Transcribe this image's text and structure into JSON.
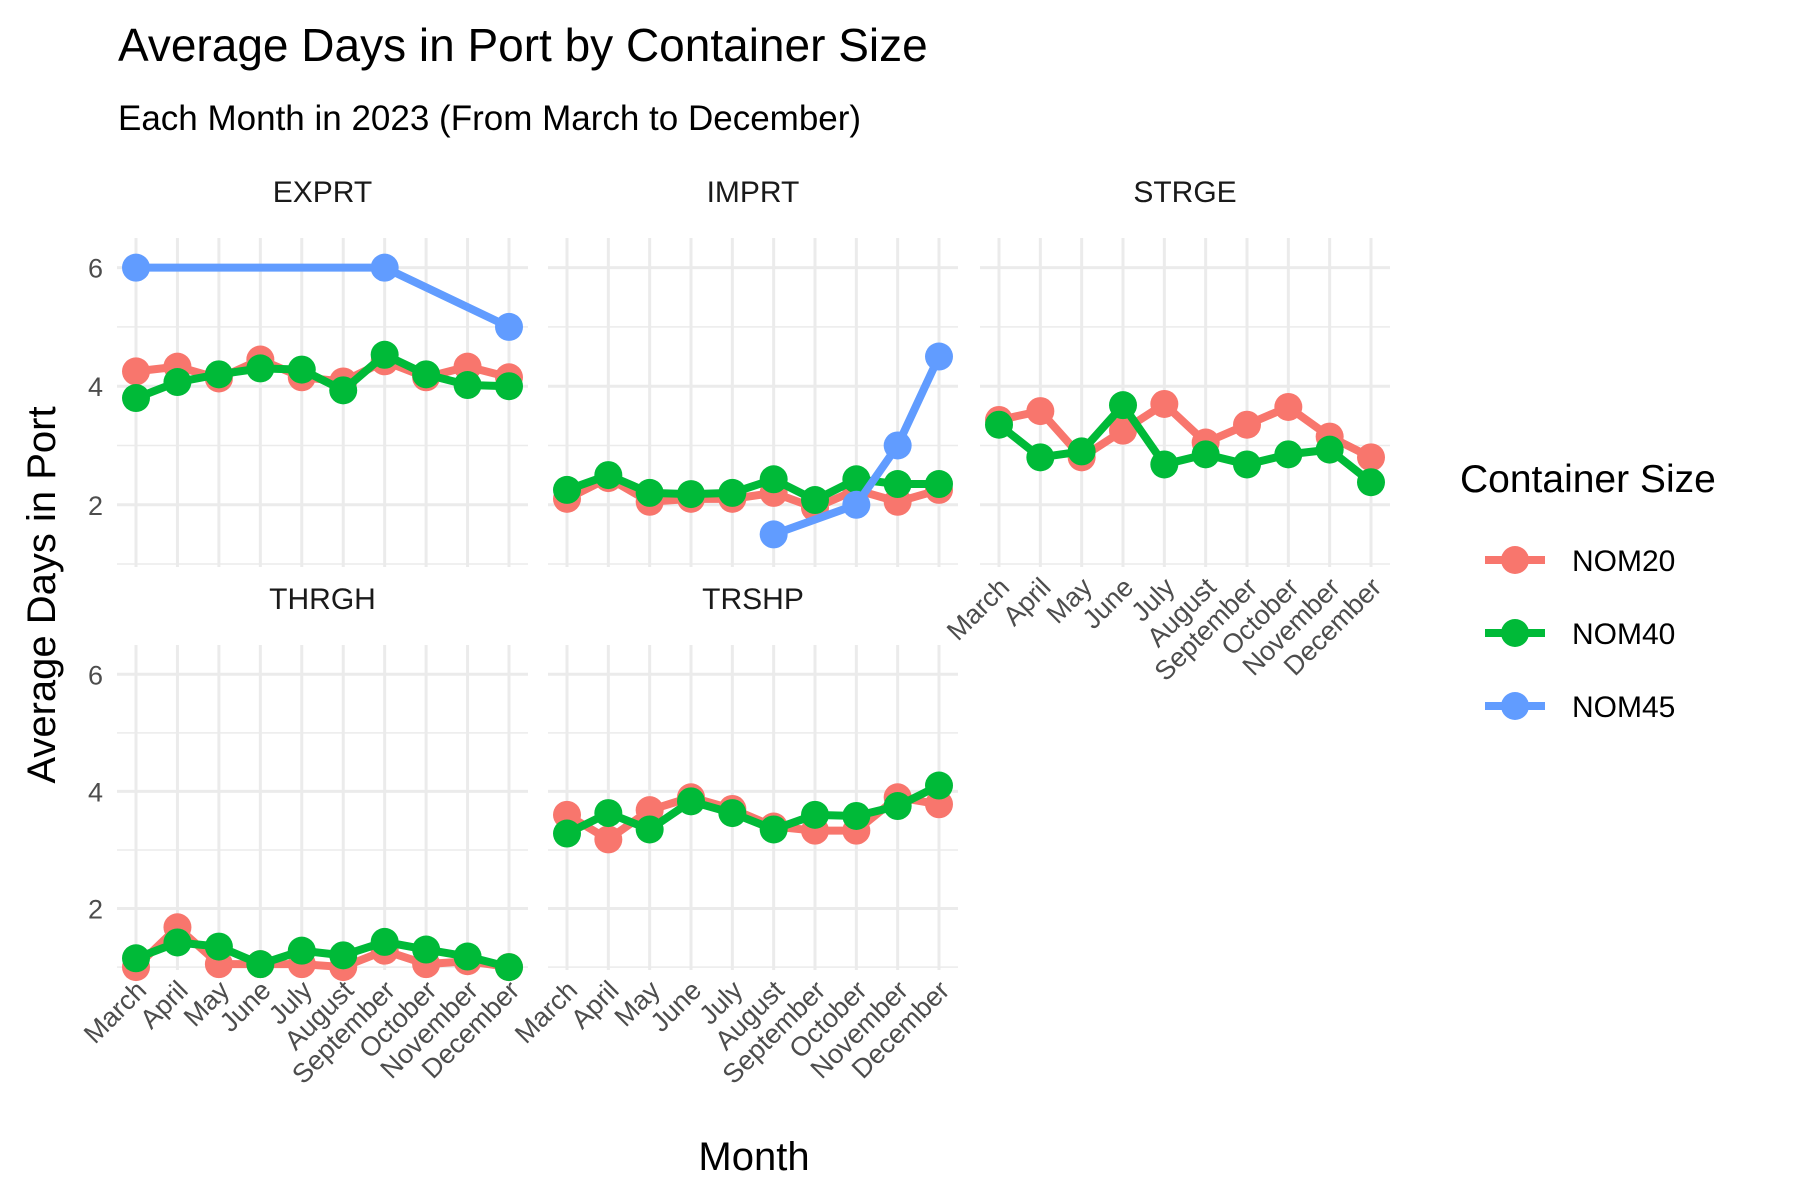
{
  "chart_data": {
    "type": "line",
    "title": "Average Days in Port by Container Size",
    "subtitle": "Each Month in 2023 (From March to December)",
    "xlabel": "Month",
    "ylabel": "Average Days in Port",
    "categories": [
      "March",
      "April",
      "May",
      "June",
      "July",
      "August",
      "September",
      "October",
      "November",
      "December"
    ],
    "yticks": [
      2,
      4,
      6
    ],
    "ylim": [
      0.95,
      6.5
    ],
    "grid": true,
    "legend": {
      "title": "Container Size",
      "placement": "right",
      "entries": [
        {
          "name": "NOM20",
          "color": "#F8766D"
        },
        {
          "name": "NOM40",
          "color": "#00BA38"
        },
        {
          "name": "NOM45",
          "color": "#619CFF"
        }
      ]
    },
    "panels": [
      {
        "name": "EXPRT",
        "series": [
          {
            "name": "NOM20",
            "values": [
              4.25,
              4.33,
              4.13,
              4.45,
              4.15,
              4.08,
              4.42,
              4.15,
              4.33,
              4.15
            ]
          },
          {
            "name": "NOM40",
            "values": [
              3.8,
              4.07,
              4.2,
              4.3,
              4.28,
              3.93,
              4.53,
              4.2,
              4.02,
              4.0
            ]
          },
          {
            "name": "NOM45",
            "values": [
              6.0,
              null,
              null,
              null,
              null,
              null,
              6.0,
              null,
              null,
              5.0
            ]
          }
        ]
      },
      {
        "name": "IMPRT",
        "series": [
          {
            "name": "NOM20",
            "values": [
              2.1,
              2.45,
              2.05,
              2.1,
              2.1,
              2.2,
              1.95,
              2.25,
              2.05,
              2.25
            ]
          },
          {
            "name": "NOM40",
            "values": [
              2.25,
              2.5,
              2.2,
              2.18,
              2.2,
              2.43,
              2.08,
              2.43,
              2.35,
              2.35
            ]
          },
          {
            "name": "NOM45",
            "values": [
              null,
              null,
              null,
              null,
              null,
              1.5,
              null,
              2.0,
              3.0,
              4.5
            ]
          }
        ]
      },
      {
        "name": "STRGE",
        "series": [
          {
            "name": "NOM20",
            "values": [
              3.43,
              3.58,
              2.8,
              3.25,
              3.7,
              3.05,
              3.35,
              3.65,
              3.15,
              2.8
            ]
          },
          {
            "name": "NOM40",
            "values": [
              3.35,
              2.8,
              2.9,
              3.68,
              2.68,
              2.85,
              2.68,
              2.85,
              2.93,
              2.38
            ]
          },
          {
            "name": "NOM45",
            "values": [
              null,
              null,
              null,
              null,
              null,
              null,
              null,
              null,
              null,
              null
            ]
          }
        ]
      },
      {
        "name": "THRGH",
        "series": [
          {
            "name": "NOM20",
            "values": [
              1.0,
              1.68,
              1.05,
              1.05,
              1.05,
              1.0,
              1.28,
              1.05,
              1.1,
              1.0
            ]
          },
          {
            "name": "NOM40",
            "values": [
              1.15,
              1.42,
              1.35,
              1.05,
              1.28,
              1.2,
              1.43,
              1.3,
              1.18,
              1.0
            ]
          },
          {
            "name": "NOM45",
            "values": [
              null,
              null,
              null,
              null,
              null,
              null,
              null,
              null,
              null,
              null
            ]
          }
        ]
      },
      {
        "name": "TRSHP",
        "series": [
          {
            "name": "NOM20",
            "values": [
              3.6,
              3.18,
              3.68,
              3.9,
              3.7,
              3.4,
              3.33,
              3.33,
              3.9,
              3.78
            ]
          },
          {
            "name": "NOM40",
            "values": [
              3.28,
              3.63,
              3.35,
              3.83,
              3.63,
              3.35,
              3.6,
              3.58,
              3.75,
              4.1
            ]
          },
          {
            "name": "NOM45",
            "values": [
              null,
              null,
              null,
              null,
              null,
              null,
              null,
              null,
              null,
              null
            ]
          }
        ]
      }
    ]
  }
}
